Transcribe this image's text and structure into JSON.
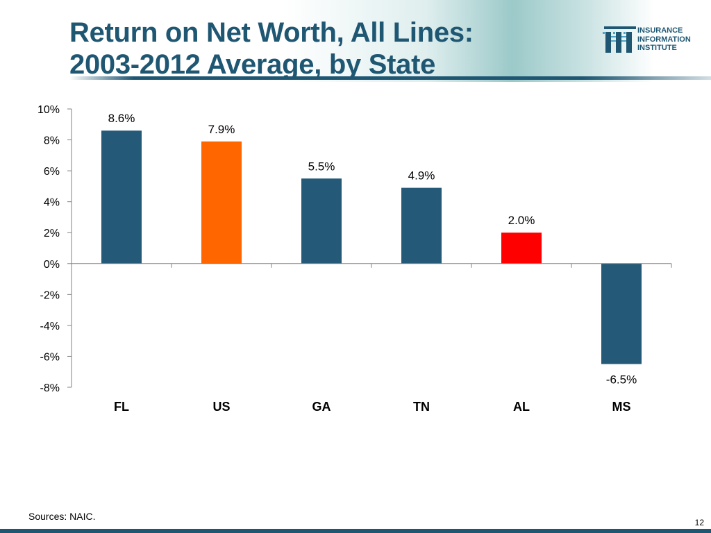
{
  "slide": {
    "title_line1": "Return on Net Worth, All Lines:",
    "title_line2": "2003-2012 Average, by State",
    "logo_line1": "INSURANCE",
    "logo_line2": "INFORMATION",
    "logo_line3": "INSTITUTE",
    "sources": "Sources: NAIC.",
    "page_number": "12"
  },
  "colors": {
    "title": "#1f5773",
    "bar_default": "#245a78",
    "bar_us": "#ff6600",
    "bar_al": "#ff0000"
  },
  "chart_data": {
    "type": "bar",
    "categories": [
      "FL",
      "US",
      "GA",
      "TN",
      "AL",
      "MS"
    ],
    "values": [
      8.6,
      7.9,
      5.5,
      4.9,
      2.0,
      -6.5
    ],
    "data_labels": [
      "8.6%",
      "7.9%",
      "5.5%",
      "4.9%",
      "2.0%",
      "-6.5%"
    ],
    "bar_colors": [
      "#245a78",
      "#ff6600",
      "#245a78",
      "#245a78",
      "#ff0000",
      "#245a78"
    ],
    "ylim": [
      -8,
      10
    ],
    "yticks": [
      10,
      8,
      6,
      4,
      2,
      0,
      -2,
      -4,
      -6,
      -8
    ],
    "ytick_labels": [
      "10%",
      "8%",
      "6%",
      "4%",
      "2%",
      "0%",
      "-2%",
      "-4%",
      "-6%",
      "-8%"
    ],
    "title": "",
    "xlabel": "",
    "ylabel": "",
    "grid": false,
    "legend": "none"
  }
}
